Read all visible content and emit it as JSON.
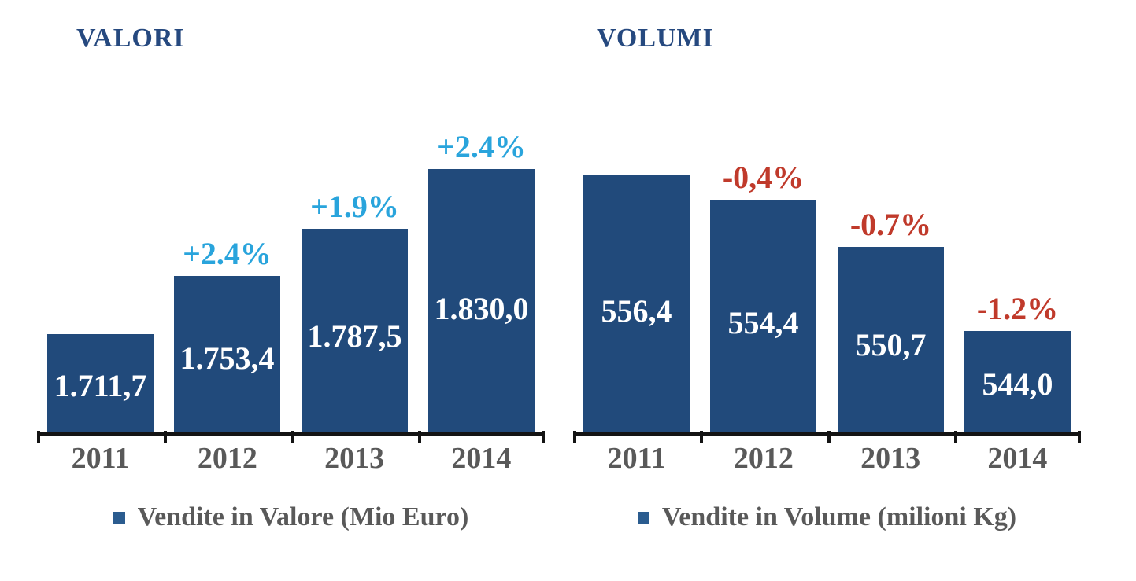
{
  "palette": {
    "bar_blue": "#214A7B",
    "title_navy": "#26497F",
    "positive_pct_blue": "#29A4DC",
    "negative_pct_red": "#C03A2B",
    "axis_black": "#141414",
    "label_gray": "#595959",
    "value_label_white": "#FFFFFF"
  },
  "chart_data": [
    {
      "type": "bar",
      "title": "VALORI",
      "legend": "Vendite in Valore (Mio Euro)",
      "legend_position": "bottom",
      "grid": false,
      "categories": [
        "2011",
        "2012",
        "2013",
        "2014"
      ],
      "values": [
        1711.7,
        1753.4,
        1787.5,
        1830.0
      ],
      "value_labels": [
        "1.711,7",
        "1.753,4",
        "1.787,5",
        "1.830,0"
      ],
      "pct_labels": [
        "",
        "+2.4%",
        "+1.9%",
        "+2.4%"
      ],
      "pct_color": "#29A4DC",
      "bar_color": "#214A7B",
      "swatch_color": "#2B5C8F",
      "value_label_color": "#FFFFFF",
      "xlabel": "",
      "ylabel": "",
      "ylim": [
        1641,
        1850
      ]
    },
    {
      "type": "bar",
      "title": "VOLUMI",
      "legend": "Vendite in Volume (milioni Kg)",
      "legend_position": "bottom",
      "grid": false,
      "categories": [
        "2011",
        "2012",
        "2013",
        "2014"
      ],
      "values": [
        556.4,
        554.4,
        550.7,
        544.0
      ],
      "value_labels": [
        "556,4",
        "554,4",
        "550,7",
        "544,0"
      ],
      "pct_labels": [
        "",
        "-0,4%",
        "-0.7%",
        "-1.2%"
      ],
      "pct_color": "#C03A2B",
      "bar_color": "#214A7B",
      "swatch_color": "#2B5C8F",
      "value_label_color": "#FFFFFF",
      "xlabel": "",
      "ylabel": "",
      "ylim": [
        536,
        559
      ]
    }
  ]
}
